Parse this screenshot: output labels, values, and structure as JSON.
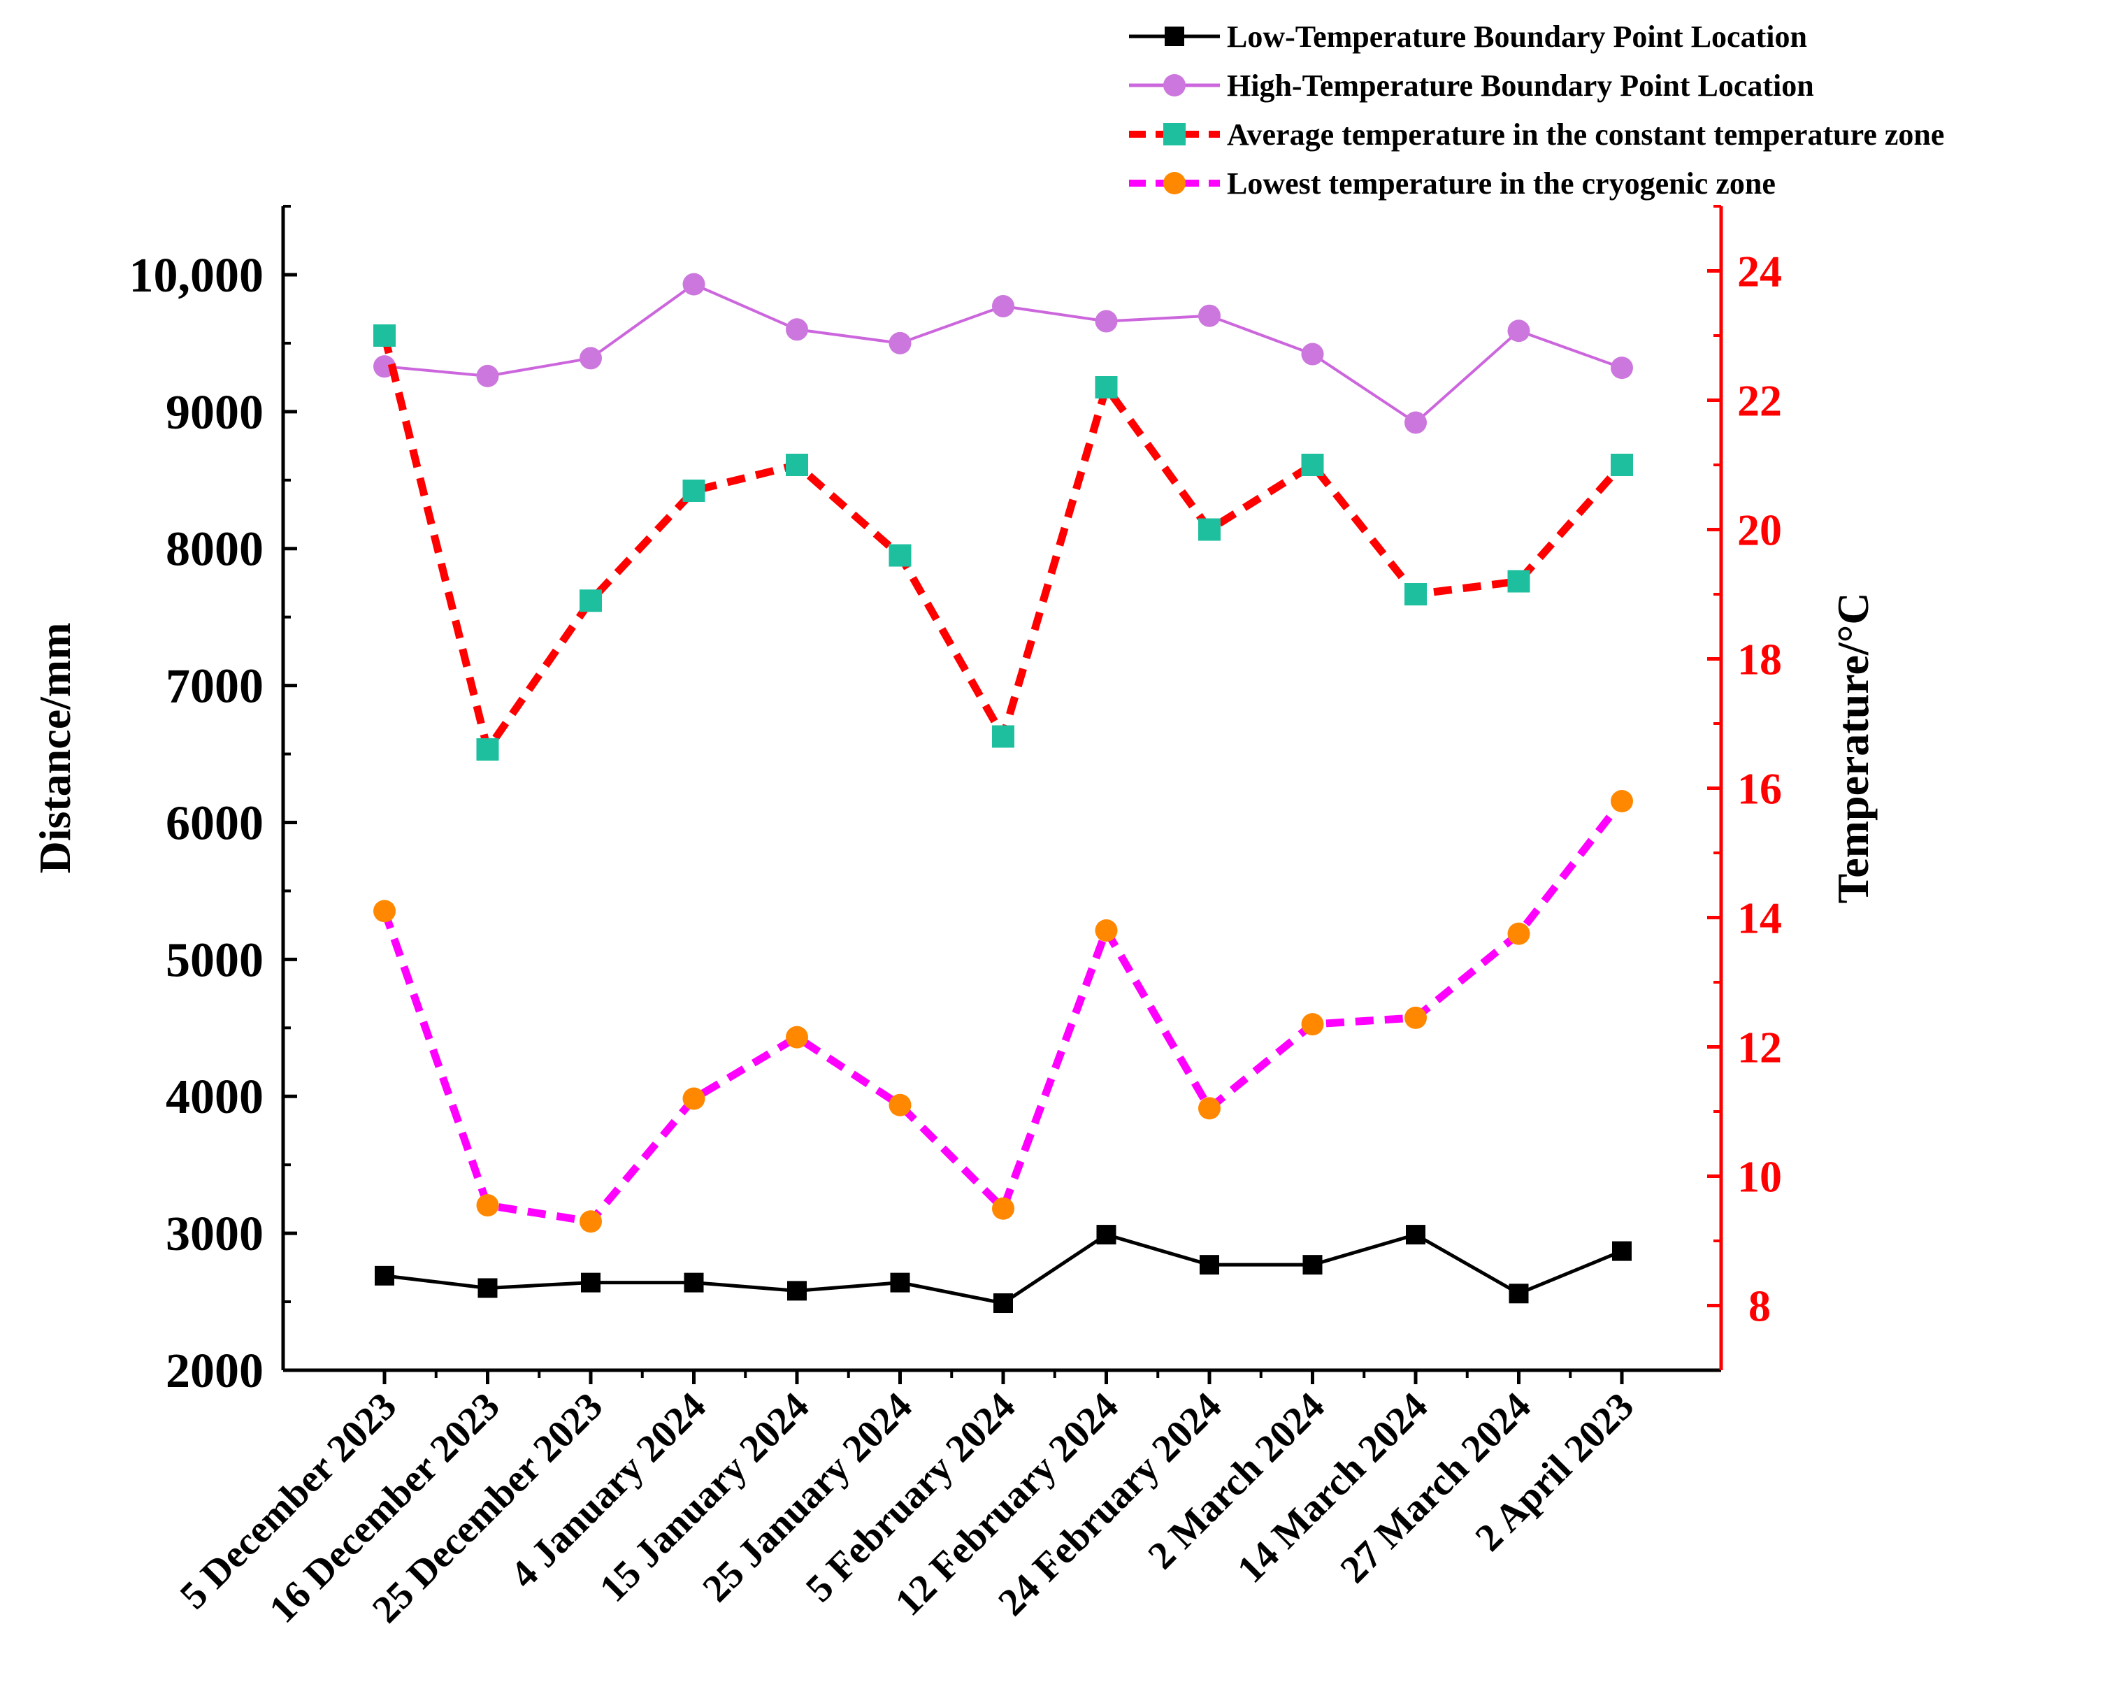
{
  "chart_data": {
    "type": "line",
    "categories": [
      "5 December 2023",
      "16 December 2023",
      "25 December 2023",
      "4 January 2024",
      "15 January 2024",
      "25 January 2024",
      "5 February 2024",
      "12 February 2024",
      "24 February 2024",
      "2 March 2024",
      "14 March 2024",
      "27 March 2024",
      "2 April 2023"
    ],
    "left_axis": {
      "label": "Distance/mm",
      "ylim": [
        2000,
        10500
      ],
      "ticks": [
        2000,
        3000,
        4000,
        5000,
        6000,
        7000,
        8000,
        9000,
        10000
      ],
      "tick_labels": [
        "2000",
        "3000",
        "4000",
        "5000",
        "6000",
        "7000",
        "8000",
        "9000",
        "10,000"
      ],
      "color": "#000000"
    },
    "right_axis": {
      "label": "Temperature/°C",
      "ylim": [
        7,
        25
      ],
      "ticks": [
        8,
        10,
        12,
        14,
        16,
        18,
        20,
        22,
        24
      ],
      "tick_labels": [
        "8",
        "10",
        "12",
        "14",
        "16",
        "18",
        "20",
        "22",
        "24"
      ],
      "color": "#ff0000"
    },
    "series": [
      {
        "name": "Low-Temperature Boundary Point Location",
        "axis": "left",
        "style": "solid",
        "marker": "square",
        "line_color": "#000000",
        "marker_color": "#000000",
        "values": [
          2690,
          2600,
          2640,
          2640,
          2580,
          2640,
          2490,
          2990,
          2770,
          2770,
          2990,
          2560,
          2870
        ]
      },
      {
        "name": "High-Temperature Boundary Point Location",
        "axis": "left",
        "style": "solid",
        "marker": "circle",
        "line_color": "#cc66dd",
        "marker_color": "#cc77dd",
        "values": [
          9330,
          9260,
          9390,
          9930,
          9600,
          9500,
          9770,
          9660,
          9700,
          9420,
          8920,
          9590,
          9320
        ]
      },
      {
        "name": "Average temperature in the constant temperature zone",
        "axis": "right",
        "style": "dashed",
        "marker": "square",
        "line_color": "#ff0000",
        "marker_color": "#1dbf9f",
        "values": [
          23.0,
          16.6,
          18.9,
          20.6,
          21.0,
          19.6,
          16.8,
          22.2,
          20.0,
          21.0,
          19.0,
          19.2,
          21.0
        ]
      },
      {
        "name": "Lowest temperature in the cryogenic zone",
        "axis": "right",
        "style": "dashed",
        "marker": "circle",
        "line_color": "#ff00ff",
        "marker_color": "#ff8800",
        "values": [
          14.1,
          9.55,
          9.3,
          11.2,
          12.15,
          11.1,
          9.5,
          13.8,
          11.05,
          12.35,
          12.45,
          13.75,
          15.8
        ]
      }
    ]
  }
}
